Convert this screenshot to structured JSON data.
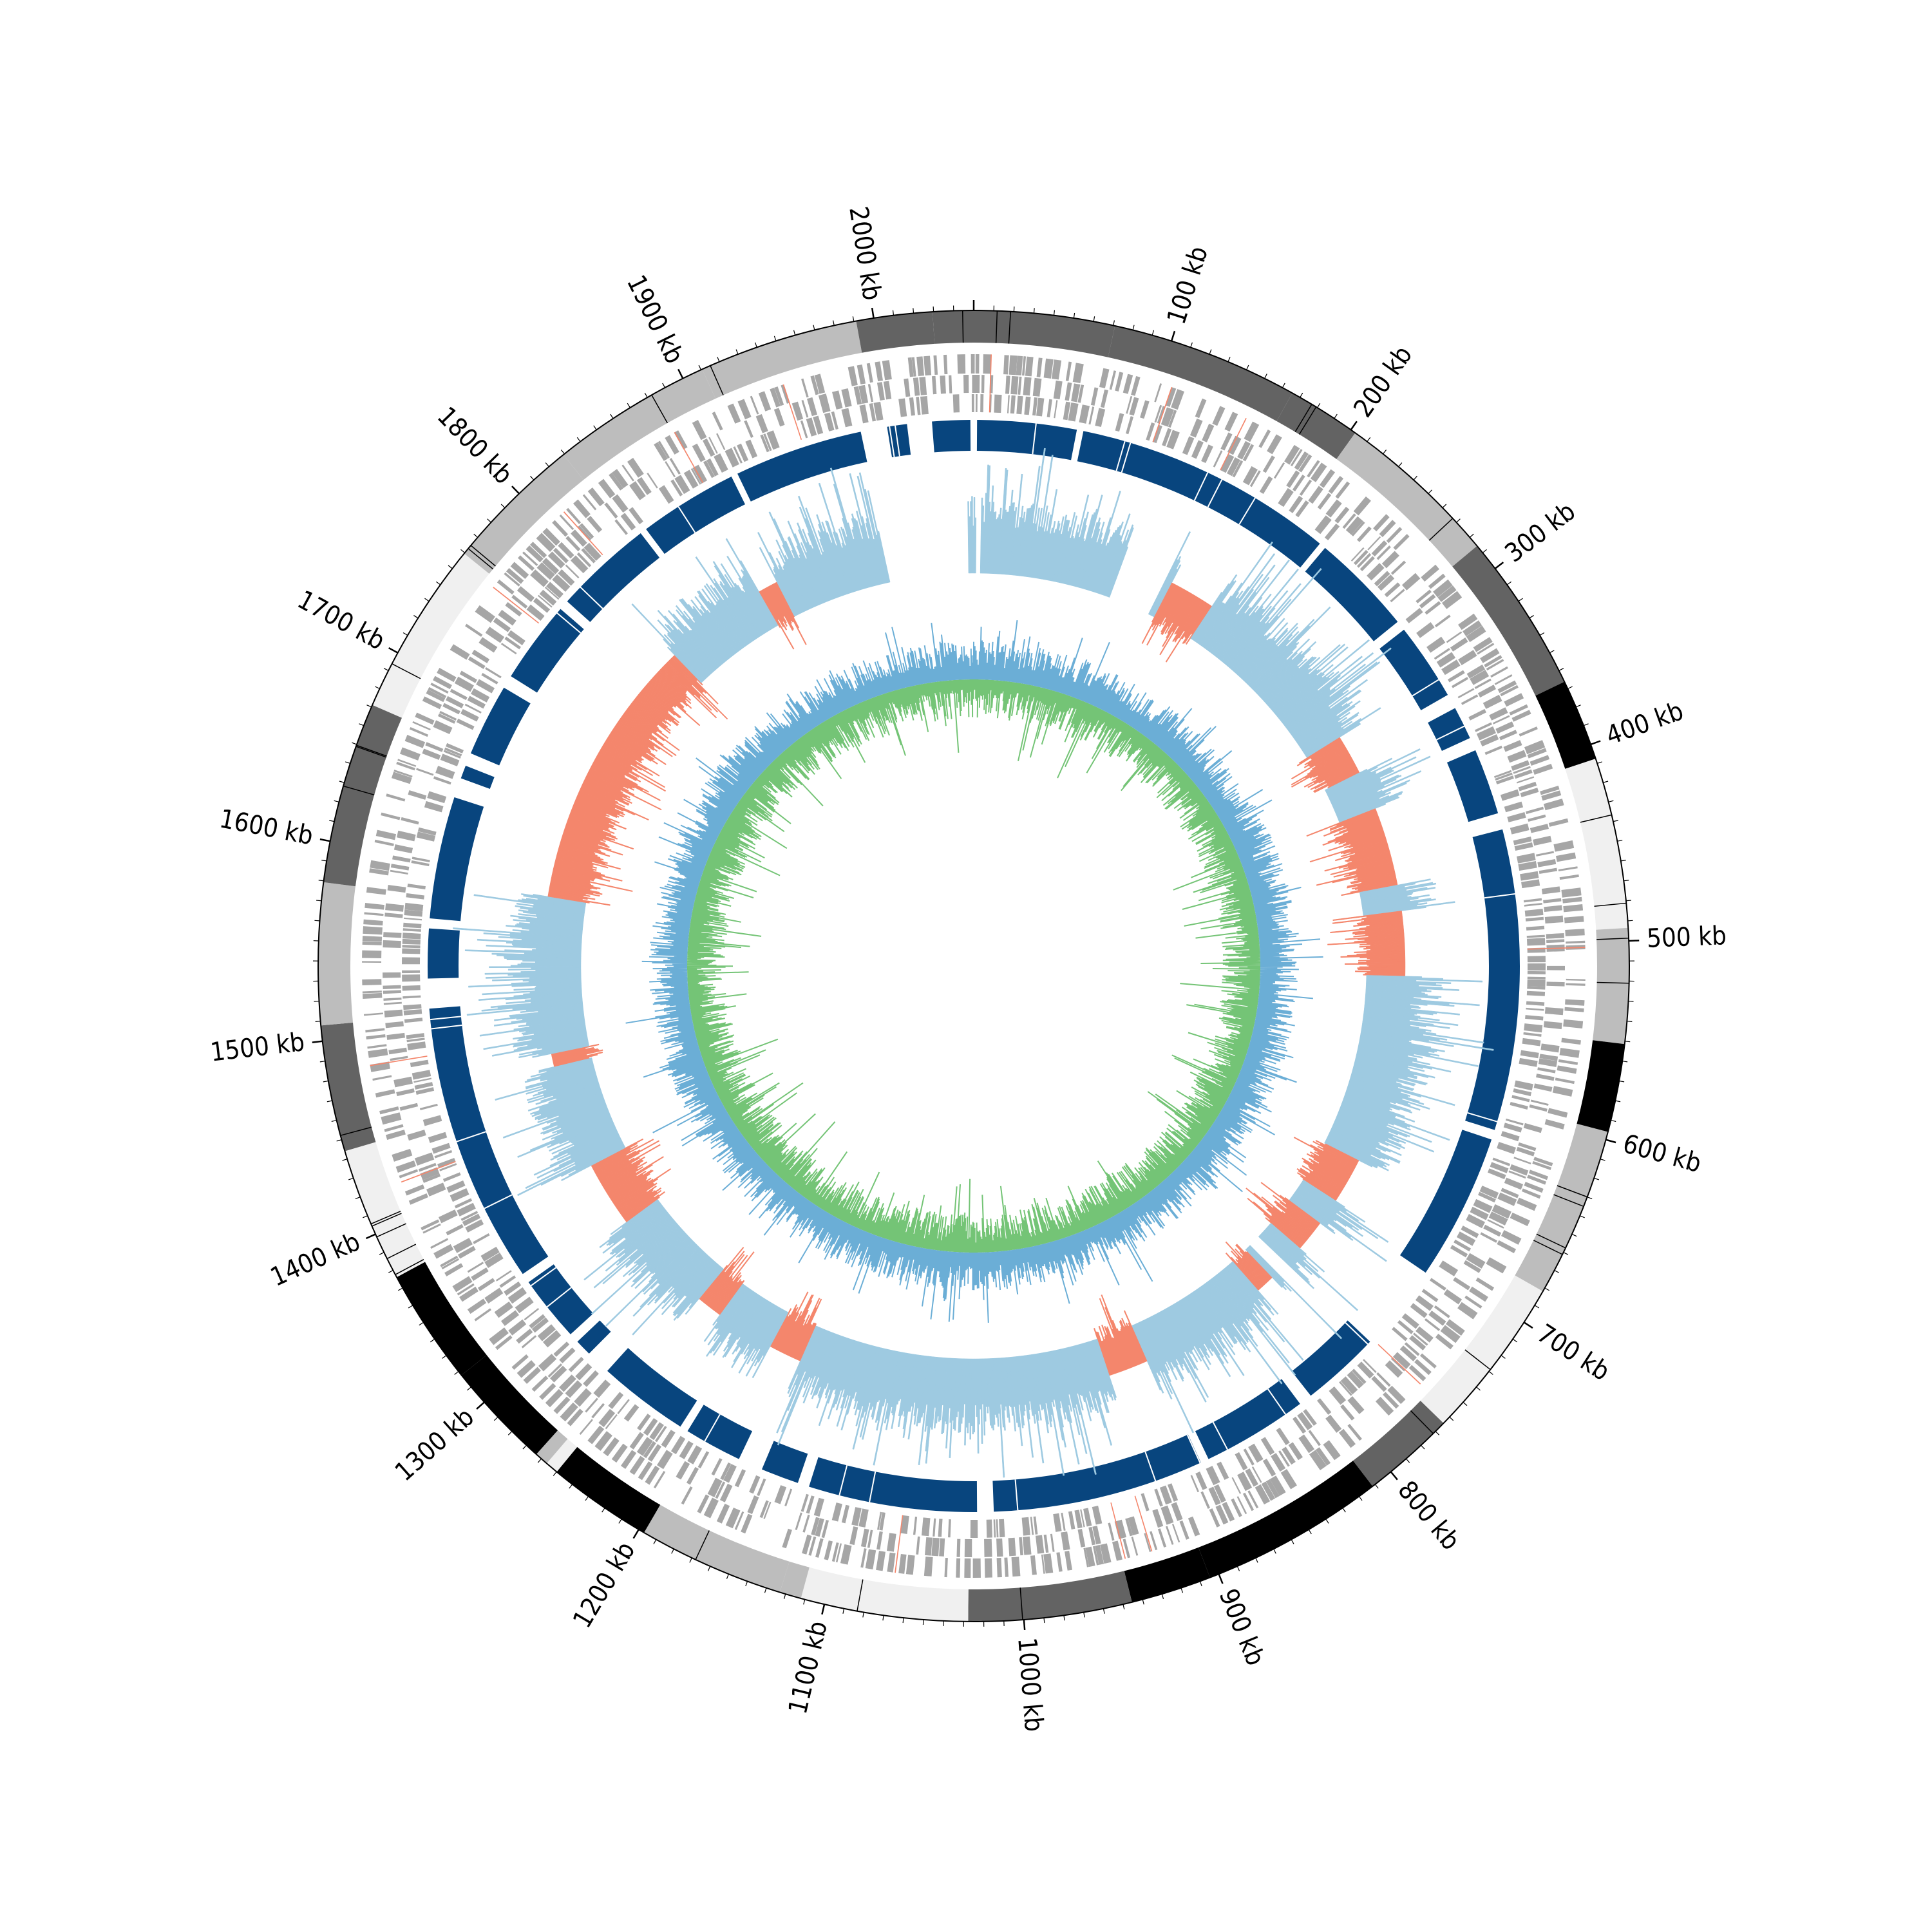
{
  "genome": {
    "unit": "kb"
  },
  "tick_labels": [
    "100 kb",
    "200 kb",
    "300 kb",
    "400 kb",
    "500 kb",
    "600 kb",
    "700 kb",
    "800 kb",
    "900 kb",
    "1000 kb",
    "1100 kb",
    "1200 kb",
    "1300 kb",
    "1400 kb",
    "1500 kb",
    "1600 kb",
    "1700 kb",
    "1800 kb",
    "1900 kb",
    "2000 kb"
  ],
  "tracks": [
    {
      "id": "contigs",
      "kind": "segments",
      "color_scale": [
        "#f0f0f0",
        "#bdbdbd",
        "#636363",
        "#000000"
      ]
    },
    {
      "id": "genes-strand-plus",
      "kind": "features",
      "color": "#a6a6a6"
    },
    {
      "id": "genes-strand-minus",
      "kind": "features",
      "color": "#a6a6a6"
    },
    {
      "id": "synteny-blocks",
      "kind": "blocks",
      "color": "#08457e"
    },
    {
      "id": "gc-skew",
      "kind": "histogram",
      "colors": {
        "positive": "#f4866c",
        "negative": "#9ecae1"
      }
    },
    {
      "id": "gc-content",
      "kind": "line",
      "colors": {
        "above": "#6baed6",
        "below": "#74c476"
      }
    }
  ],
  "colors": {
    "background": "#ffffff",
    "axis": "#000000"
  }
}
